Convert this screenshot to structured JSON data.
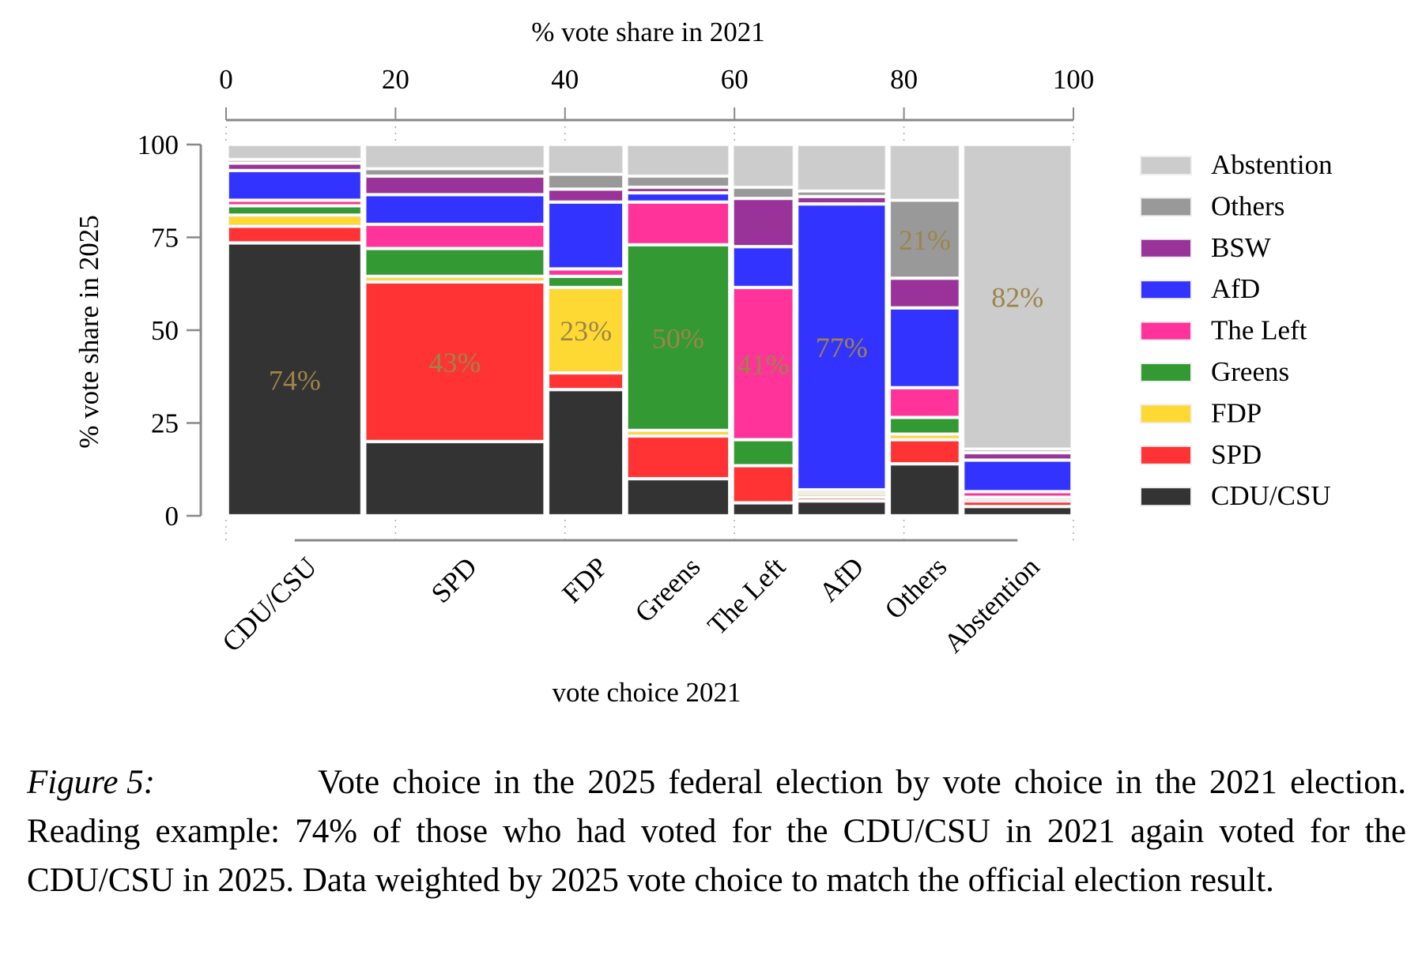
{
  "chart_data": {
    "type": "bar",
    "subtype": "mosaic (Marimekko) stacked 100% bar",
    "top_axis_title": "% vote share in 2021",
    "xlabel": "vote choice 2021",
    "ylabel": "% vote share in 2025",
    "x_ticks": [
      "0",
      "20",
      "40",
      "60",
      "80",
      "100"
    ],
    "y_ticks": [
      "0",
      "25",
      "50",
      "75",
      "100"
    ],
    "xlim": [
      0,
      100
    ],
    "ylim": [
      0,
      100
    ],
    "grid": false,
    "legend_position": "right",
    "categories": [
      "CDU/CSU",
      "SPD",
      "FDP",
      "Greens",
      "The Left",
      "AfD",
      "Others",
      "Abstention"
    ],
    "column_widths_2021_share": [
      16.2,
      21.6,
      9.3,
      12.5,
      7.6,
      10.9,
      8.7,
      13.2
    ],
    "series_order_bottom_to_top": [
      "CDU/CSU",
      "SPD",
      "FDP",
      "Greens",
      "The Left",
      "AfD",
      "BSW",
      "Others",
      "Abstention"
    ],
    "series": [
      {
        "name": "CDU/CSU",
        "color": "#333333",
        "values": [
          73.5,
          20.0,
          34.0,
          10.0,
          3.5,
          4.0,
          14.0,
          2.5
        ]
      },
      {
        "name": "SPD",
        "color": "#ff3333",
        "values": [
          4.5,
          43.0,
          4.5,
          11.5,
          10.0,
          1.0,
          6.5,
          1.5
        ]
      },
      {
        "name": "FDP",
        "color": "#ffd933",
        "values": [
          3.0,
          1.5,
          23.0,
          1.5,
          0.0,
          1.0,
          1.5,
          0.5
        ]
      },
      {
        "name": "Greens",
        "color": "#339933",
        "values": [
          2.5,
          7.5,
          3.0,
          50.0,
          7.0,
          0.5,
          4.5,
          0.5
        ]
      },
      {
        "name": "The Left",
        "color": "#ff3399",
        "values": [
          1.5,
          6.5,
          2.0,
          11.5,
          41.0,
          0.5,
          8.0,
          1.5
        ]
      },
      {
        "name": "AfD",
        "color": "#3333ff",
        "values": [
          8.0,
          8.0,
          18.0,
          2.5,
          11.0,
          77.0,
          21.5,
          8.5
        ]
      },
      {
        "name": "BSW",
        "color": "#993399",
        "values": [
          2.0,
          5.0,
          3.5,
          1.5,
          13.0,
          2.0,
          8.0,
          2.0
        ]
      },
      {
        "name": "Others",
        "color": "#999999",
        "values": [
          1.0,
          2.0,
          4.0,
          3.0,
          3.0,
          1.5,
          21.0,
          1.0
        ]
      },
      {
        "name": "Abstention",
        "color": "#cccccc",
        "values": [
          4.0,
          6.5,
          8.0,
          8.5,
          11.5,
          12.5,
          15.0,
          82.0
        ]
      }
    ],
    "annotations": [
      {
        "column": "CDU/CSU",
        "series": "CDU/CSU",
        "text": "74%"
      },
      {
        "column": "SPD",
        "series": "SPD",
        "text": "43%"
      },
      {
        "column": "FDP",
        "series": "FDP",
        "text": "23%"
      },
      {
        "column": "Greens",
        "series": "Greens",
        "text": "50%"
      },
      {
        "column": "The Left",
        "series": "The Left",
        "text": "41%"
      },
      {
        "column": "AfD",
        "series": "AfD",
        "text": "77%"
      },
      {
        "column": "Others",
        "series": "Others",
        "text": "21%"
      },
      {
        "column": "Abstention",
        "series": "Abstention",
        "text": "82%"
      }
    ],
    "legend_entries_top_to_bottom": [
      "Abstention",
      "Others",
      "BSW",
      "AfD",
      "The Left",
      "Greens",
      "FDP",
      "SPD",
      "CDU/CSU"
    ],
    "annotation_color": "#9c8547"
  },
  "caption": {
    "label": "Figure 5:",
    "text": "Vote choice in the 2025 federal election by vote choice in the 2021 election. Reading example: 74% of those who had voted for the CDU/CSU in 2021 again voted for the CDU/CSU in 2025. Data weighted by 2025 vote choice to match the official election result."
  }
}
